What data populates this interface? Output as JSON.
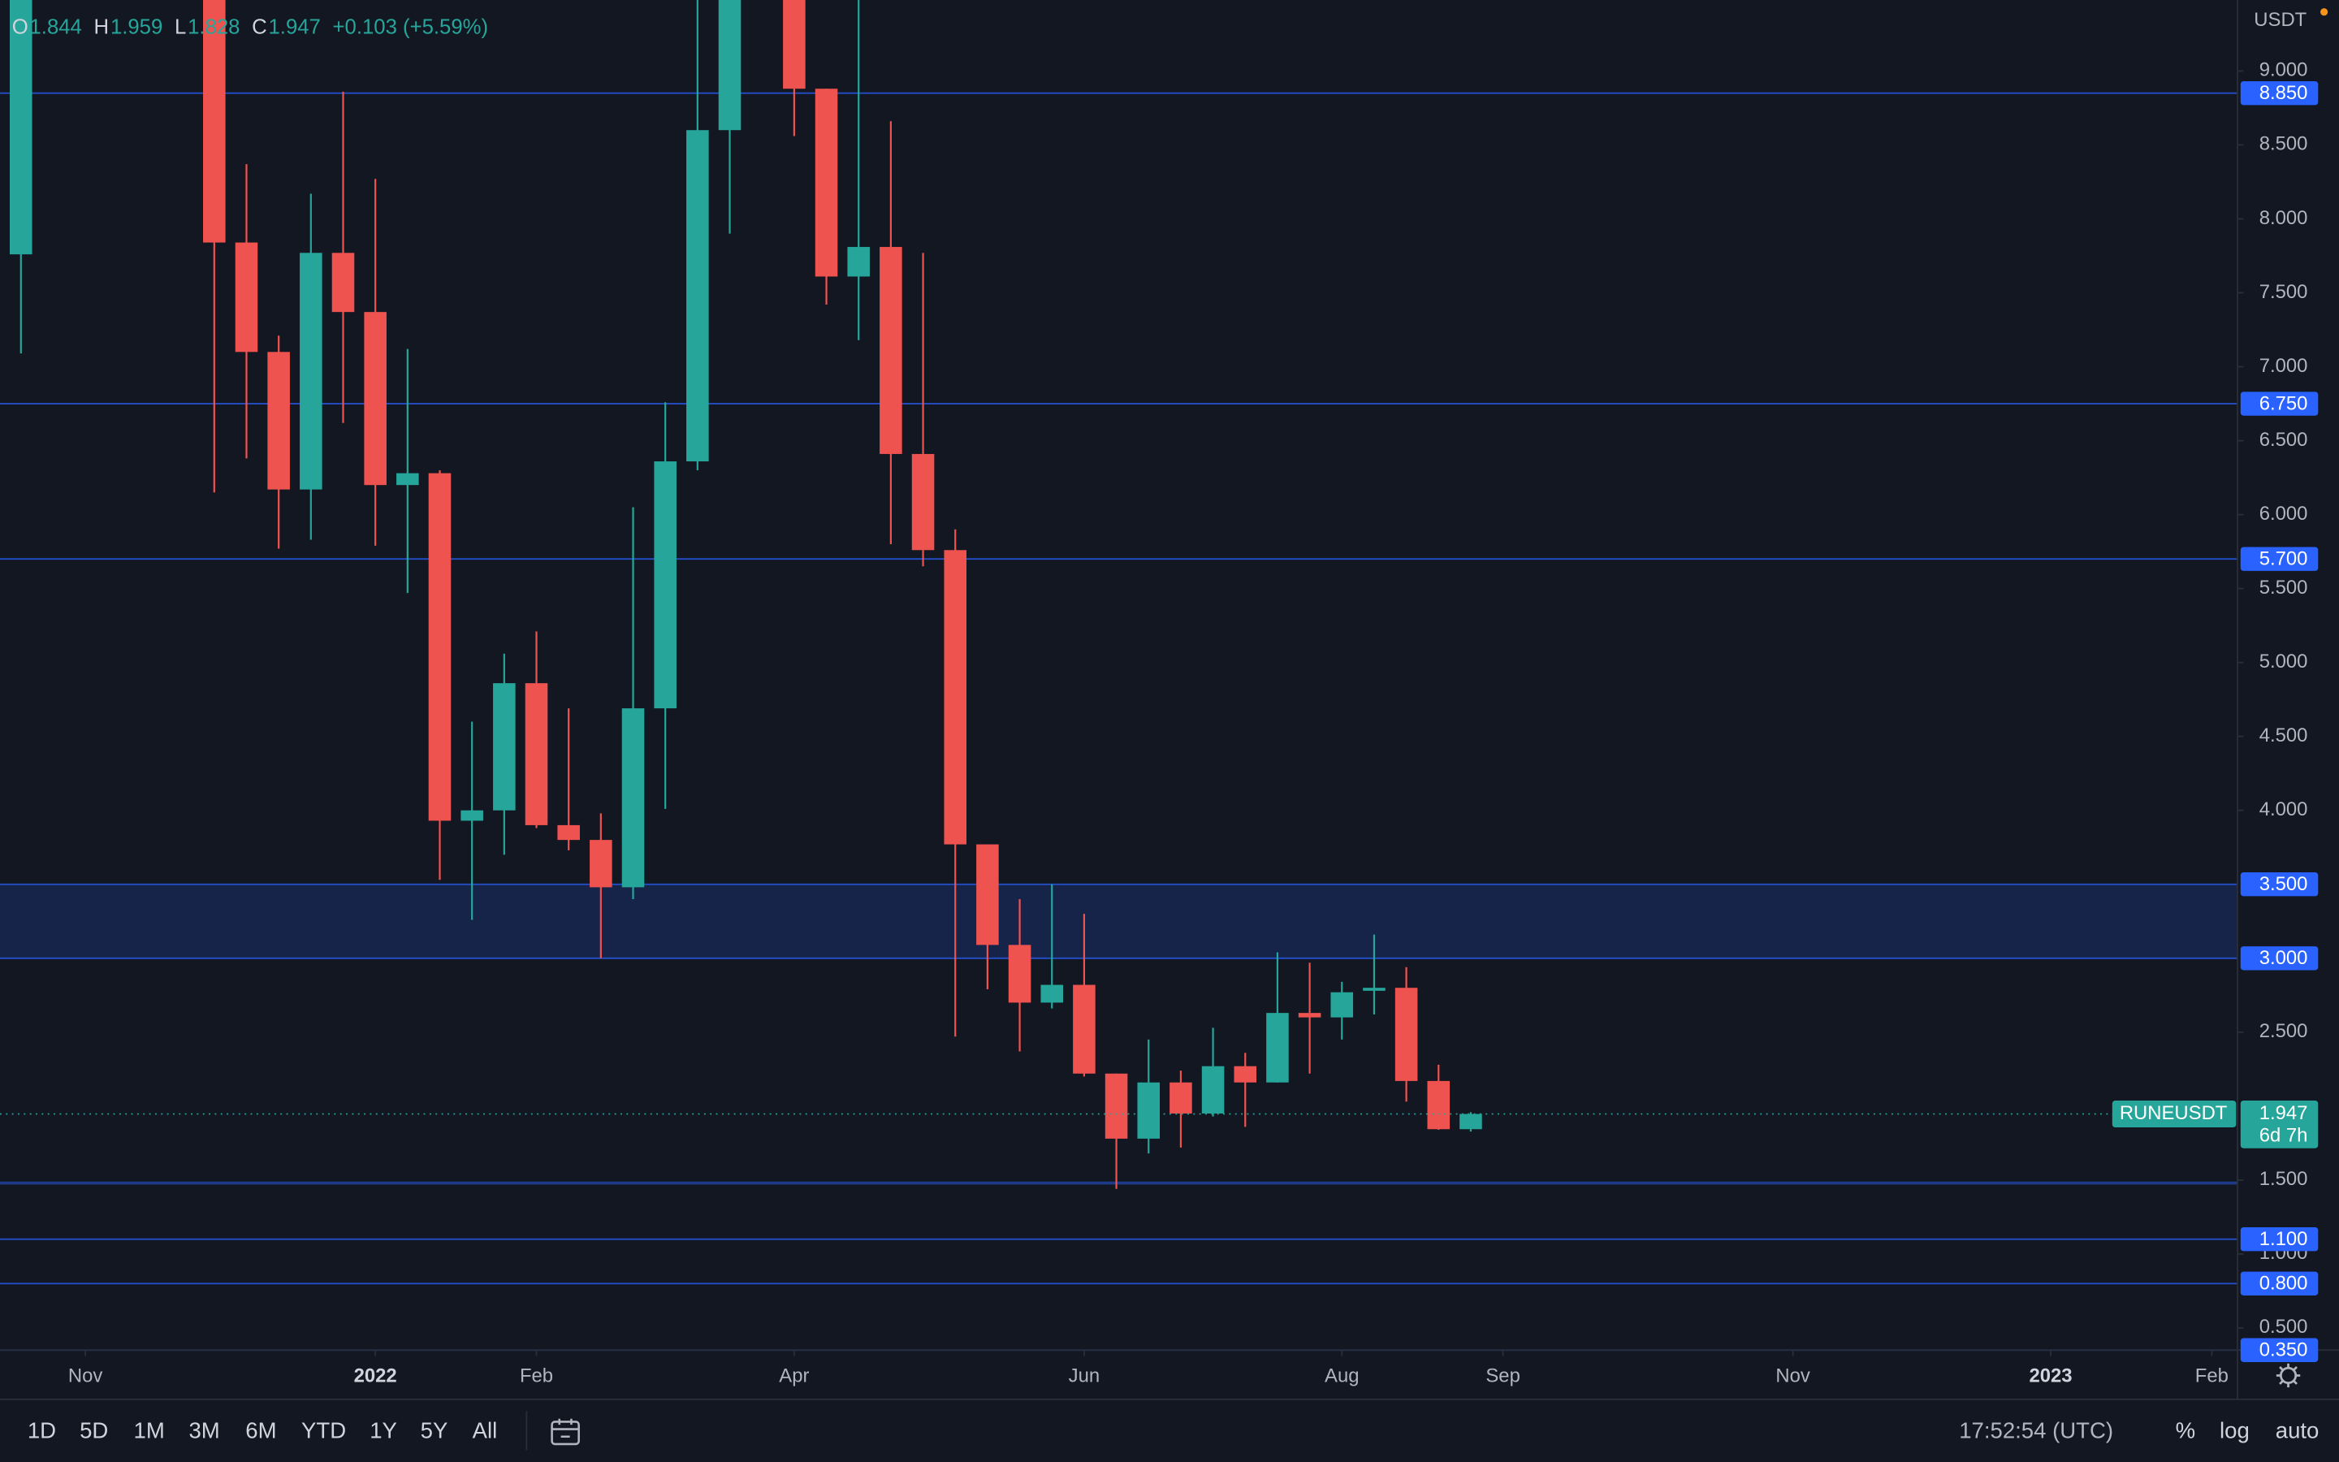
{
  "chart_data": {
    "type": "candlestick",
    "symbol": "RUNEUSDT",
    "currency": "USDT",
    "header_labels": [
      "O",
      "H",
      "L",
      "C"
    ],
    "change": "+0.103 (+5.59%)",
    "countdown": "6d 7h",
    "up_color": "#26a69a",
    "down_color": "#ef5350",
    "level_color": "#2962ff",
    "grid": false,
    "x": [
      0,
      6,
      7,
      8,
      9,
      10,
      11,
      12,
      13,
      14,
      15,
      16,
      17,
      18,
      19,
      20,
      21,
      22,
      24,
      25,
      26,
      27,
      28,
      29,
      30,
      31,
      32,
      33,
      34,
      35,
      36,
      37,
      38,
      39,
      40,
      41,
      42,
      43,
      44,
      45
    ],
    "open": [
      7.76,
      null,
      7.84,
      7.1,
      6.17,
      7.77,
      7.37,
      6.2,
      6.28,
      3.93,
      4.0,
      4.86,
      3.9,
      3.8,
      3.48,
      4.69,
      6.36,
      8.6,
      null,
      8.88,
      7.61,
      7.81,
      6.41,
      5.76,
      3.77,
      3.09,
      2.7,
      2.82,
      2.22,
      1.78,
      2.16,
      1.95,
      2.27,
      2.16,
      2.63,
      2.6,
      2.78,
      2.8,
      2.17,
      1.844
    ],
    "high": [
      null,
      null,
      8.37,
      7.21,
      8.17,
      8.86,
      8.27,
      7.12,
      6.3,
      4.6,
      5.06,
      5.21,
      4.69,
      3.98,
      6.05,
      6.76,
      null,
      null,
      null,
      8.88,
      null,
      8.66,
      7.77,
      5.9,
      3.77,
      3.4,
      3.5,
      3.3,
      2.22,
      2.45,
      2.24,
      2.53,
      2.36,
      3.04,
      2.97,
      2.84,
      3.16,
      2.94,
      2.28,
      1.959
    ],
    "low": [
      7.09,
      6.15,
      6.38,
      5.77,
      5.83,
      6.62,
      5.79,
      5.47,
      3.53,
      3.26,
      3.7,
      3.88,
      3.73,
      3.0,
      3.4,
      4.01,
      6.3,
      7.9,
      8.56,
      7.42,
      7.18,
      5.8,
      5.65,
      2.47,
      2.79,
      2.37,
      2.66,
      2.2,
      1.44,
      1.68,
      1.72,
      1.93,
      1.86,
      2.16,
      2.22,
      2.45,
      2.62,
      2.03,
      1.84,
      1.828
    ],
    "close": [
      null,
      7.84,
      7.1,
      6.17,
      7.77,
      7.37,
      6.2,
      6.28,
      3.93,
      4.0,
      4.86,
      3.9,
      3.8,
      3.48,
      4.69,
      6.36,
      8.6,
      null,
      8.88,
      7.61,
      7.81,
      6.41,
      5.76,
      3.77,
      3.09,
      2.7,
      2.82,
      2.22,
      1.78,
      2.16,
      1.95,
      2.27,
      2.16,
      2.63,
      2.6,
      2.77,
      2.8,
      2.17,
      1.844,
      1.947
    ],
    "xlim": [
      -0.65,
      68.8
    ],
    "ylim": [
      0.35,
      9.48
    ],
    "xticks": [
      {
        "value": 2,
        "label": "Nov"
      },
      {
        "value": 11,
        "label": "2022"
      },
      {
        "value": 16,
        "label": "Feb"
      },
      {
        "value": 24,
        "label": "Apr"
      },
      {
        "value": 33,
        "label": "Jun"
      },
      {
        "value": 41,
        "label": "Aug"
      },
      {
        "value": 46,
        "label": "Sep"
      },
      {
        "value": 55,
        "label": "Nov"
      },
      {
        "value": 63,
        "label": "2023"
      },
      {
        "value": 68,
        "label": "Feb"
      }
    ],
    "yticks": [
      {
        "value": 0.5,
        "label": "0.500"
      },
      {
        "value": 1,
        "label": "1.000"
      },
      {
        "value": 1.5,
        "label": "1.500"
      },
      {
        "value": 2.5,
        "label": "2.500"
      },
      {
        "value": 4,
        "label": "4.000"
      },
      {
        "value": 4.5,
        "label": "4.500"
      },
      {
        "value": 5,
        "label": "5.000"
      },
      {
        "value": 5.5,
        "label": "5.500"
      },
      {
        "value": 6,
        "label": "6.000"
      },
      {
        "value": 6.5,
        "label": "6.500"
      },
      {
        "value": 7,
        "label": "7.000"
      },
      {
        "value": 7.5,
        "label": "7.500"
      },
      {
        "value": 8,
        "label": "8.000"
      },
      {
        "value": 8.5,
        "label": "8.500"
      },
      {
        "value": 9,
        "label": "9.000"
      }
    ],
    "levels": [
      {
        "value": 8.85,
        "label": "8.850"
      },
      {
        "value": 6.75,
        "label": "6.750"
      },
      {
        "value": 5.7,
        "label": "5.700"
      },
      {
        "value": 3.5,
        "label": "3.500"
      },
      {
        "value": 3,
        "label": "3.000"
      },
      {
        "value": 1.1,
        "label": "1.100"
      },
      {
        "value": 0.8,
        "label": "0.800"
      },
      {
        "value": 0.35,
        "label": "0.350"
      }
    ],
    "unlabeled_levels": [
      1.5
    ],
    "zone": [
      3,
      3.5
    ]
  },
  "toolbar": {
    "ranges": [
      "1D",
      "5D",
      "1M",
      "3M",
      "6M",
      "YTD",
      "1Y",
      "5Y",
      "All"
    ],
    "time": "17:52:54 (UTC)",
    "options": [
      "%",
      "log",
      "auto"
    ]
  }
}
